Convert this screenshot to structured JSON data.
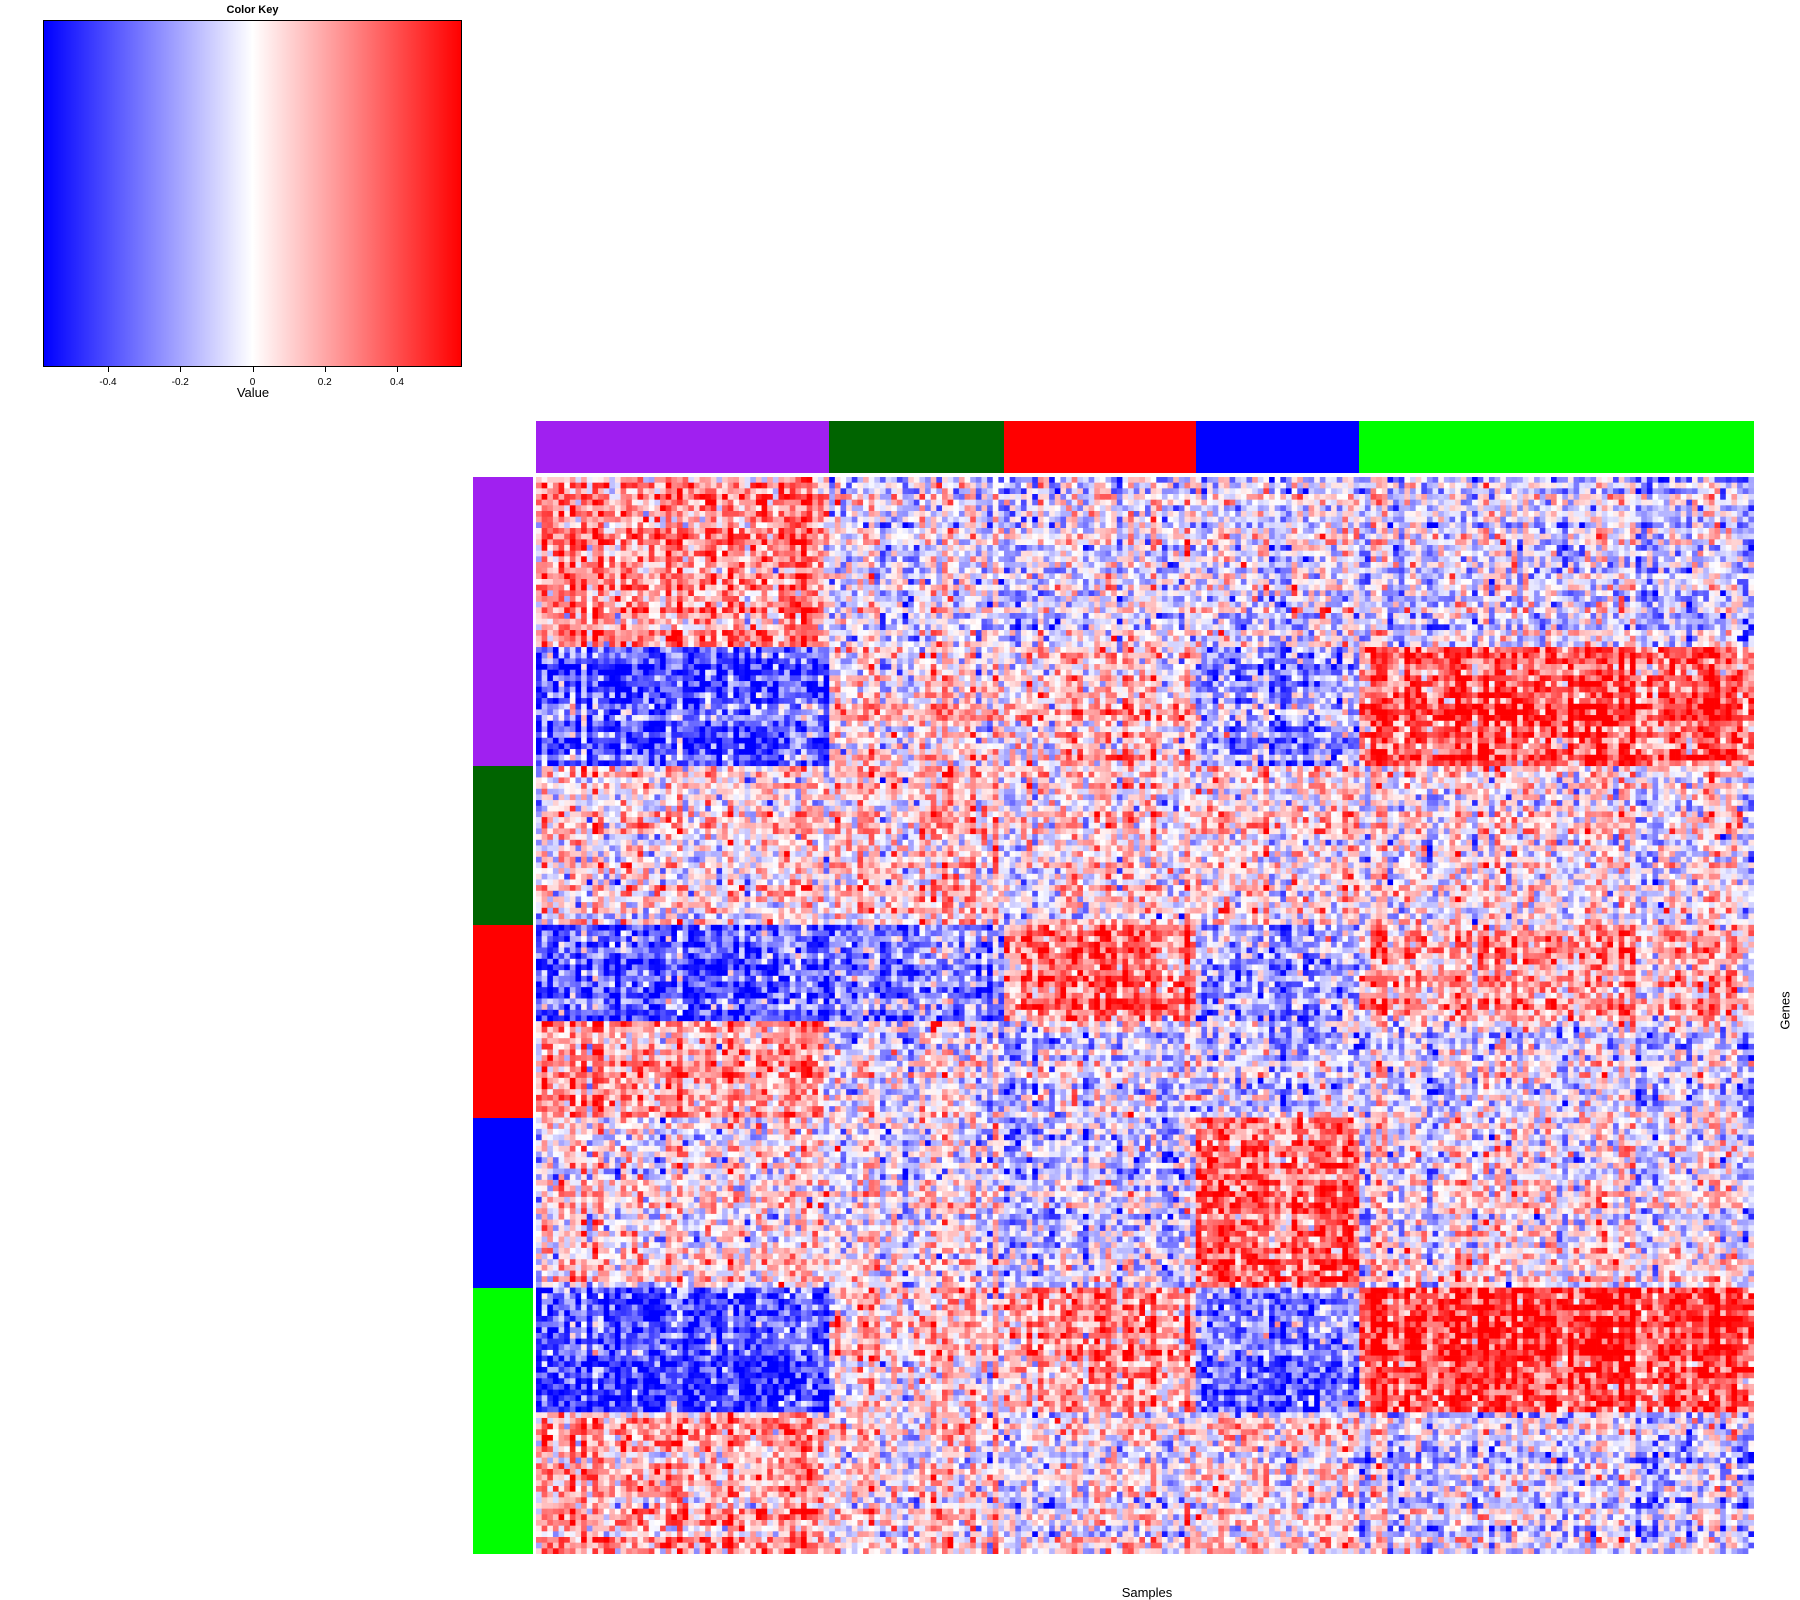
{
  "chart_data": {
    "type": "heatmap",
    "color_key": {
      "title": "Color Key",
      "xlabel": "Value",
      "range": [
        -0.58,
        0.58
      ],
      "ticks": [
        {
          "value": -0.4,
          "label": "-0.4"
        },
        {
          "value": -0.2,
          "label": "-0.2"
        },
        {
          "value": 0,
          "label": "0"
        },
        {
          "value": 0.2,
          "label": "0.2"
        },
        {
          "value": 0.4,
          "label": "0.4"
        }
      ],
      "colors": [
        "#0000ff",
        "#ffffff",
        "#ff0000"
      ]
    },
    "xlabel": "Samples",
    "ylabel": "Genes",
    "n_columns": 216,
    "n_rows": 190,
    "column_groups": [
      {
        "color": "#a020f0",
        "count": 52
      },
      {
        "color": "#006400",
        "count": 31
      },
      {
        "color": "#ff0000",
        "count": 34
      },
      {
        "color": "#0000ff",
        "count": 29
      },
      {
        "color": "#00ff00",
        "count": 70
      }
    ],
    "row_groups": [
      {
        "color": "#a020f0",
        "count": 51
      },
      {
        "color": "#006400",
        "count": 28
      },
      {
        "color": "#ff0000",
        "count": 34
      },
      {
        "color": "#0000ff",
        "count": 30
      },
      {
        "color": "#00ff00",
        "count": 47
      }
    ],
    "block_pattern": {
      "description": "mean value per row-band x column-group; cells vary randomly around these means",
      "row_bands": [
        {
          "rows": [
            0,
            30
          ],
          "means": [
            0.25,
            -0.05,
            -0.05,
            -0.05,
            -0.1
          ]
        },
        {
          "rows": [
            30,
            51
          ],
          "means": [
            -0.35,
            0.1,
            0.15,
            -0.2,
            0.4
          ]
        },
        {
          "rows": [
            51,
            79
          ],
          "means": [
            0.05,
            0.1,
            0.05,
            0.05,
            0.0
          ]
        },
        {
          "rows": [
            79,
            96
          ],
          "means": [
            -0.35,
            -0.25,
            0.35,
            -0.2,
            0.2
          ]
        },
        {
          "rows": [
            96,
            113
          ],
          "means": [
            0.25,
            0.0,
            -0.05,
            -0.1,
            -0.05
          ]
        },
        {
          "rows": [
            113,
            143
          ],
          "means": [
            0.05,
            0.0,
            -0.1,
            0.35,
            0.0
          ]
        },
        {
          "rows": [
            143,
            165
          ],
          "means": [
            -0.4,
            0.1,
            0.25,
            -0.3,
            0.45
          ]
        },
        {
          "rows": [
            165,
            190
          ],
          "means": [
            0.2,
            0.05,
            0.0,
            0.05,
            -0.1
          ]
        }
      ]
    }
  }
}
